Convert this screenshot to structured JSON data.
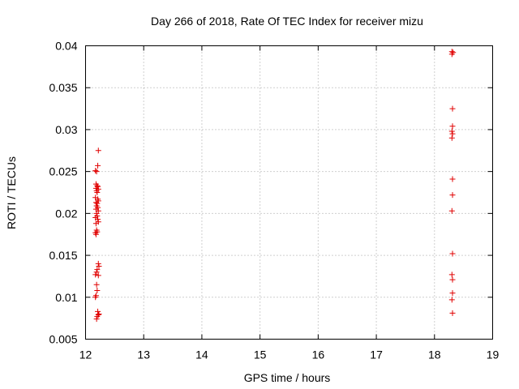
{
  "chart_data": {
    "type": "scatter",
    "title": "Day 266 of 2018, Rate Of TEC Index for receiver mizu",
    "xlabel": "GPS time / hours",
    "ylabel": "ROTI / TECUs",
    "xlim": [
      12,
      19
    ],
    "ylim": [
      0.005,
      0.04
    ],
    "xticks": [
      12,
      13,
      14,
      15,
      16,
      17,
      18,
      19
    ],
    "xtick_labels": [
      "12",
      "13",
      "14",
      "15",
      "16",
      "17",
      "18",
      "19"
    ],
    "yticks": [
      0.005,
      0.01,
      0.015,
      0.02,
      0.025,
      0.03,
      0.035,
      0.04
    ],
    "ytick_labels": [
      "0.005",
      "0.01",
      "0.015",
      "0.02",
      "0.025",
      "0.03",
      "0.035",
      "0.04"
    ],
    "grid": true,
    "marker": "+",
    "color": "#e00000",
    "series": [
      {
        "name": "ROTI",
        "points": [
          [
            12.22,
            0.0275
          ],
          [
            12.21,
            0.0257
          ],
          [
            12.17,
            0.0251
          ],
          [
            12.19,
            0.025
          ],
          [
            12.18,
            0.0235
          ],
          [
            12.2,
            0.0233
          ],
          [
            12.21,
            0.0232
          ],
          [
            12.18,
            0.023
          ],
          [
            12.22,
            0.0229
          ],
          [
            12.19,
            0.0227
          ],
          [
            12.2,
            0.0225
          ],
          [
            12.17,
            0.0219
          ],
          [
            12.21,
            0.0217
          ],
          [
            12.22,
            0.0215
          ],
          [
            12.18,
            0.0213
          ],
          [
            12.2,
            0.0212
          ],
          [
            12.19,
            0.0209
          ],
          [
            12.21,
            0.0207
          ],
          [
            12.18,
            0.0205
          ],
          [
            12.22,
            0.0203
          ],
          [
            12.19,
            0.02
          ],
          [
            12.2,
            0.0197
          ],
          [
            12.17,
            0.0195
          ],
          [
            12.21,
            0.0193
          ],
          [
            12.22,
            0.019
          ],
          [
            12.18,
            0.0188
          ],
          [
            12.19,
            0.018
          ],
          [
            12.2,
            0.0178
          ],
          [
            12.17,
            0.0177
          ],
          [
            12.18,
            0.0175
          ],
          [
            12.22,
            0.014
          ],
          [
            12.23,
            0.0137
          ],
          [
            12.2,
            0.0133
          ],
          [
            12.19,
            0.013
          ],
          [
            12.17,
            0.0127
          ],
          [
            12.22,
            0.0126
          ],
          [
            12.19,
            0.0115
          ],
          [
            12.2,
            0.0108
          ],
          [
            12.18,
            0.0102
          ],
          [
            12.17,
            0.01
          ],
          [
            12.21,
            0.0083
          ],
          [
            12.23,
            0.008
          ],
          [
            12.22,
            0.0079
          ],
          [
            12.2,
            0.0077
          ],
          [
            12.19,
            0.0074
          ],
          [
            18.3,
            0.0393
          ],
          [
            18.32,
            0.0392
          ],
          [
            18.3,
            0.039
          ],
          [
            18.31,
            0.0325
          ],
          [
            18.31,
            0.0304
          ],
          [
            18.3,
            0.0298
          ],
          [
            18.31,
            0.0295
          ],
          [
            18.3,
            0.029
          ],
          [
            18.31,
            0.0241
          ],
          [
            18.31,
            0.0222
          ],
          [
            18.3,
            0.0203
          ],
          [
            18.31,
            0.0152
          ],
          [
            18.3,
            0.0127
          ],
          [
            18.31,
            0.0121
          ],
          [
            18.31,
            0.0105
          ],
          [
            18.3,
            0.0097
          ],
          [
            18.31,
            0.0081
          ]
        ]
      }
    ]
  }
}
